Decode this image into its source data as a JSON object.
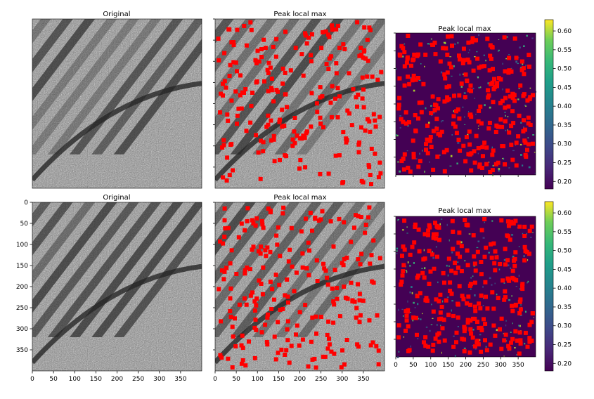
{
  "figure": {
    "titles": {
      "top_left": "Original",
      "top_middle": "Peak local max",
      "top_right": "Peak local max",
      "bottom_left": "Original",
      "bottom_middle": "Peak local max",
      "bottom_right": "Peak local max"
    },
    "colors": {
      "peak_marker": "#ff0000",
      "heatmap_low": "#440154",
      "heatmap_high": "#fde725"
    }
  },
  "chart_data": [
    {
      "type": "heatmap",
      "panel": "top_left",
      "title": "Original",
      "description_colormap": "gray",
      "image_size": [
        400,
        400
      ],
      "axes_visible": false
    },
    {
      "type": "scatter",
      "panel": "top_middle",
      "title": "Peak local max",
      "overlay": "peak markers over grayscale image",
      "xlim": [
        0,
        400
      ],
      "ylim": [
        400,
        0
      ],
      "axes_visible": false
    },
    {
      "type": "heatmap",
      "panel": "top_right",
      "title": "Peak local max",
      "colormap": "viridis",
      "colorbar": {
        "vmin": 0.18,
        "vmax": 0.63,
        "ticks": [
          0.2,
          0.25,
          0.3,
          0.35,
          0.4,
          0.45,
          0.5,
          0.55,
          0.6
        ],
        "tick_labels": [
          "0.20",
          "0.25",
          "0.30",
          "0.35",
          "0.40",
          "0.45",
          "0.50",
          "0.55",
          "0.60"
        ]
      }
    },
    {
      "type": "heatmap",
      "panel": "bottom_left",
      "title": "Original",
      "colormap": "gray",
      "xlim": [
        0,
        400
      ],
      "ylim": [
        400,
        0
      ],
      "x_ticks": [
        0,
        50,
        100,
        150,
        200,
        250,
        300,
        350
      ],
      "x_tick_labels": [
        "0",
        "50",
        "100",
        "150",
        "200",
        "250",
        "300",
        "350"
      ],
      "y_ticks": [
        0,
        50,
        100,
        150,
        200,
        250,
        300,
        350
      ],
      "y_tick_labels": [
        "0",
        "50",
        "100",
        "150",
        "200",
        "250",
        "300",
        "350"
      ]
    },
    {
      "type": "scatter",
      "panel": "bottom_middle",
      "title": "Peak local max",
      "xlim": [
        0,
        400
      ],
      "ylim": [
        400,
        0
      ],
      "x_ticks": [
        0,
        50,
        100,
        150,
        200,
        250,
        300,
        350
      ],
      "x_tick_labels": [
        "0",
        "50",
        "100",
        "150",
        "200",
        "250",
        "300",
        "350"
      ]
    },
    {
      "type": "heatmap",
      "panel": "bottom_right",
      "title": "Peak local max",
      "colormap": "viridis",
      "xlim": [
        0,
        400
      ],
      "ylim": [
        400,
        0
      ],
      "x_ticks": [
        0,
        50,
        100,
        150,
        200,
        250,
        300,
        350
      ],
      "x_tick_labels": [
        "0",
        "50",
        "100",
        "150",
        "200",
        "250",
        "300",
        "350"
      ],
      "colorbar": {
        "vmin": 0.18,
        "vmax": 0.63,
        "ticks": [
          0.2,
          0.25,
          0.3,
          0.35,
          0.4,
          0.45,
          0.5,
          0.55,
          0.6
        ],
        "tick_labels": [
          "0.20",
          "0.25",
          "0.30",
          "0.35",
          "0.40",
          "0.45",
          "0.50",
          "0.55",
          "0.60"
        ]
      }
    }
  ]
}
